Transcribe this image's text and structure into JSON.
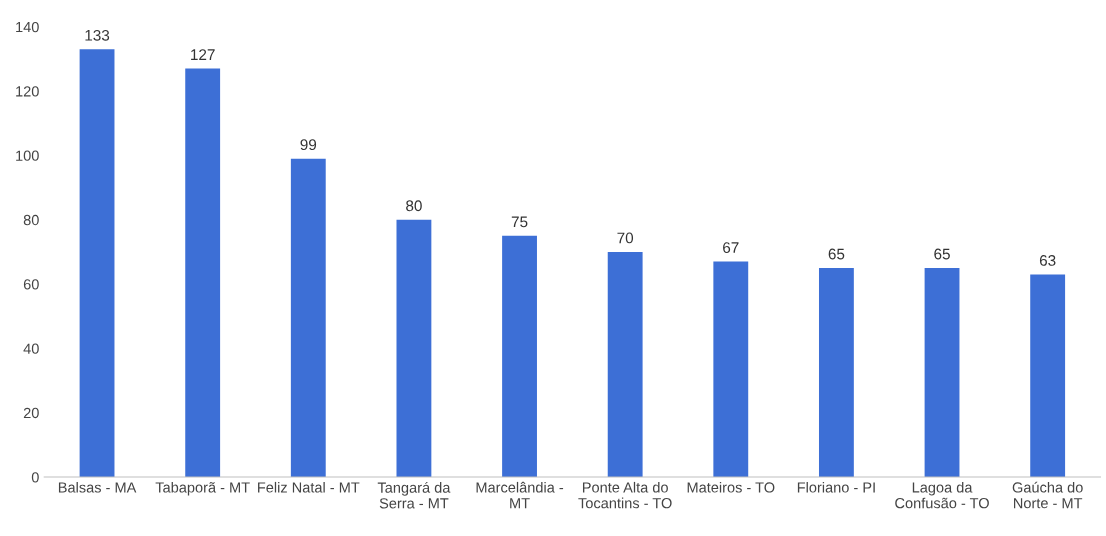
{
  "chart_data": {
    "type": "bar",
    "categories": [
      "Balsas - MA",
      "Tabaporã - MT",
      "Feliz Natal - MT",
      "Tangará da\nSerra - MT",
      "Marcelândia -\nMT",
      "Ponte Alta do\nTocantins - TO",
      "Mateiros - TO",
      "Floriano - PI",
      "Lagoa da\nConfusão - TO",
      "Gaúcha do\nNorte - MT"
    ],
    "values": [
      133,
      127,
      99,
      80,
      75,
      70,
      67,
      65,
      65,
      63
    ],
    "color": "#3d6fd6",
    "data_labels": true,
    "ylim": [
      0,
      140
    ],
    "yticks": [
      0,
      20,
      40,
      60,
      80,
      100,
      120,
      140
    ],
    "grid": false,
    "legend": false
  }
}
